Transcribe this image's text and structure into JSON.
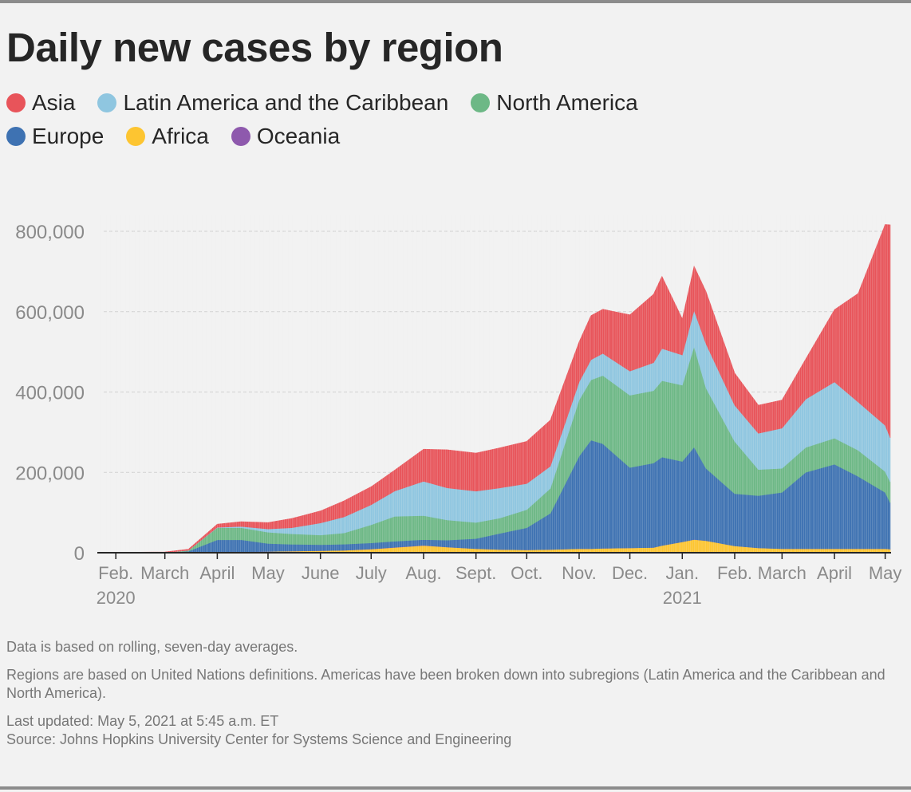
{
  "title": "Daily new cases by region",
  "legend": [
    {
      "label": "Asia",
      "color": "#e8545a"
    },
    {
      "label": "Latin America and the Caribbean",
      "color": "#8fc6e0"
    },
    {
      "label": "North America",
      "color": "#6db886"
    },
    {
      "label": "Europe",
      "color": "#3e72b2"
    },
    {
      "label": "Africa",
      "color": "#fdc531"
    },
    {
      "label": "Oceania",
      "color": "#8e59ad"
    }
  ],
  "notes": {
    "note1": "Data is based on rolling, seven-day averages.",
    "note2": "Regions are based on United Nations definitions. Americas have been broken down into subregions (Latin America and the Caribbean and North America).",
    "updated": "Last updated: May 5, 2021 at 5:45 a.m. ET",
    "source": "Source: Johns Hopkins University Center for Systems Science and Engineering"
  },
  "chart_data": {
    "type": "area",
    "stacked": true,
    "x_unit": "week ending (seven-day rolling average)",
    "x": [
      "2020-01-22",
      "2020-02-01",
      "2020-03-01",
      "2020-03-15",
      "2020-04-01",
      "2020-04-15",
      "2020-05-01",
      "2020-05-15",
      "2020-06-01",
      "2020-06-15",
      "2020-07-01",
      "2020-07-15",
      "2020-08-01",
      "2020-08-15",
      "2020-09-01",
      "2020-09-15",
      "2020-10-01",
      "2020-10-15",
      "2020-11-01",
      "2020-11-08",
      "2020-11-15",
      "2020-12-01",
      "2020-12-15",
      "2020-12-20",
      "2021-01-01",
      "2021-01-08",
      "2021-01-15",
      "2021-02-01",
      "2021-02-15",
      "2021-03-01",
      "2021-03-15",
      "2021-04-01",
      "2021-04-15",
      "2021-05-01",
      "2021-05-04"
    ],
    "series": [
      {
        "name": "Africa",
        "color": "#fdc531",
        "values": [
          0,
          0,
          0,
          500,
          1500,
          2000,
          3000,
          4000,
          5000,
          6000,
          9000,
          13000,
          18000,
          14000,
          10000,
          8000,
          7000,
          8000,
          10000,
          10000,
          11000,
          12000,
          13000,
          18000,
          27000,
          33000,
          30000,
          17000,
          12000,
          10000,
          10000,
          10000,
          10000,
          10000,
          9000
        ]
      },
      {
        "name": "Oceania",
        "color": "#8e59ad",
        "values": [
          0,
          0,
          0,
          200,
          600,
          300,
          100,
          100,
          100,
          200,
          400,
          600,
          600,
          300,
          200,
          100,
          100,
          100,
          100,
          100,
          100,
          100,
          100,
          100,
          100,
          100,
          100,
          100,
          100,
          100,
          100,
          100,
          100,
          100,
          100
        ]
      },
      {
        "name": "Europe",
        "color": "#3e72b2",
        "values": [
          0,
          0,
          0,
          3000,
          30000,
          30000,
          20000,
          17000,
          15000,
          15000,
          15000,
          15000,
          14000,
          17000,
          25000,
          40000,
          55000,
          90000,
          230000,
          270000,
          260000,
          200000,
          210000,
          220000,
          200000,
          230000,
          180000,
          130000,
          130000,
          140000,
          190000,
          210000,
          180000,
          140000,
          115000
        ]
      },
      {
        "name": "North America",
        "color": "#6db886",
        "values": [
          0,
          0,
          0,
          2000,
          30000,
          30000,
          28000,
          26000,
          24000,
          28000,
          45000,
          62000,
          60000,
          50000,
          40000,
          38000,
          45000,
          62000,
          140000,
          150000,
          170000,
          180000,
          180000,
          190000,
          190000,
          250000,
          200000,
          130000,
          65000,
          60000,
          62000,
          65000,
          65000,
          52000,
          52000
        ]
      },
      {
        "name": "Latin America and the Caribbean",
        "color": "#8fc6e0",
        "values": [
          0,
          0,
          0,
          300,
          1000,
          3000,
          8000,
          15000,
          30000,
          40000,
          50000,
          63000,
          85000,
          80000,
          78000,
          75000,
          65000,
          55000,
          45000,
          50000,
          55000,
          60000,
          70000,
          80000,
          75000,
          90000,
          110000,
          90000,
          90000,
          100000,
          120000,
          140000,
          120000,
          115000,
          110000
        ]
      },
      {
        "name": "Asia",
        "color": "#e8545a",
        "values": [
          0,
          1000,
          2000,
          3000,
          8000,
          12000,
          16000,
          23000,
          30000,
          40000,
          45000,
          52000,
          80000,
          95000,
          95000,
          100000,
          105000,
          115000,
          100000,
          110000,
          110000,
          140000,
          170000,
          180000,
          90000,
          110000,
          130000,
          80000,
          70000,
          70000,
          100000,
          180000,
          270000,
          500000,
          530000
        ]
      }
    ],
    "x_ticks": [
      {
        "date": "2020-02-01",
        "label": "Feb.",
        "year": "2020"
      },
      {
        "date": "2020-03-01",
        "label": "March",
        "year": ""
      },
      {
        "date": "2020-04-01",
        "label": "April",
        "year": ""
      },
      {
        "date": "2020-05-01",
        "label": "May",
        "year": ""
      },
      {
        "date": "2020-06-01",
        "label": "June",
        "year": ""
      },
      {
        "date": "2020-07-01",
        "label": "July",
        "year": ""
      },
      {
        "date": "2020-08-01",
        "label": "Aug.",
        "year": ""
      },
      {
        "date": "2020-09-01",
        "label": "Sept.",
        "year": ""
      },
      {
        "date": "2020-10-01",
        "label": "Oct.",
        "year": ""
      },
      {
        "date": "2020-11-01",
        "label": "Nov.",
        "year": ""
      },
      {
        "date": "2020-12-01",
        "label": "Dec.",
        "year": ""
      },
      {
        "date": "2021-01-01",
        "label": "Jan.",
        "year": "2021"
      },
      {
        "date": "2021-02-01",
        "label": "Feb.",
        "year": ""
      },
      {
        "date": "2021-03-01",
        "label": "March",
        "year": ""
      },
      {
        "date": "2021-04-01",
        "label": "April",
        "year": ""
      },
      {
        "date": "2021-05-01",
        "label": "May",
        "year": ""
      }
    ],
    "y_ticks": [
      {
        "value": 0,
        "label": "0"
      },
      {
        "value": 200000,
        "label": "200,000"
      },
      {
        "value": 400000,
        "label": "400,000"
      },
      {
        "value": 600000,
        "label": "600,000"
      },
      {
        "value": 800000,
        "label": "800,000"
      }
    ],
    "xlim": [
      "2020-01-22",
      "2021-05-04"
    ],
    "ylim": [
      0,
      800000
    ],
    "grid": true,
    "legend_position": "top-left"
  }
}
